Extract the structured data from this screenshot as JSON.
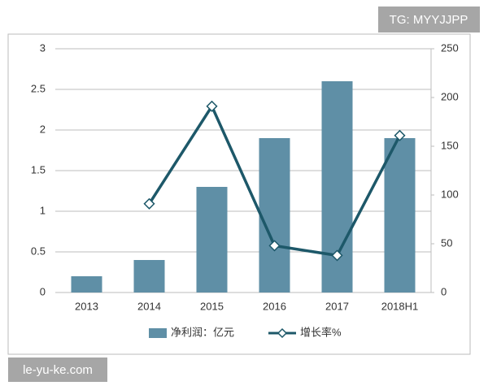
{
  "chart_data": {
    "type": "combo",
    "categories": [
      "2013",
      "2014",
      "2015",
      "2016",
      "2017",
      "2018H1"
    ],
    "series": [
      {
        "name": "净利润：亿元",
        "type": "bar",
        "color": "#5f8fa6",
        "values": [
          0.2,
          0.4,
          1.3,
          1.9,
          2.6,
          1.9
        ]
      },
      {
        "name": "增长率%",
        "type": "line",
        "axis": "y2",
        "color": "#1d5869",
        "values": [
          null,
          91,
          191,
          48,
          38,
          161
        ]
      }
    ],
    "ylim": [
      0,
      3
    ],
    "yticks": [
      0,
      0.5,
      1,
      1.5,
      2,
      2.5,
      3
    ],
    "y2lim": [
      0,
      250
    ],
    "y2ticks": [
      0,
      50,
      100,
      150,
      200,
      250
    ],
    "grid": true,
    "legend": "bottom"
  },
  "watermarks": {
    "top_right": "TG: MYYJJPP",
    "bottom_left": "le-yu-ke.com"
  }
}
